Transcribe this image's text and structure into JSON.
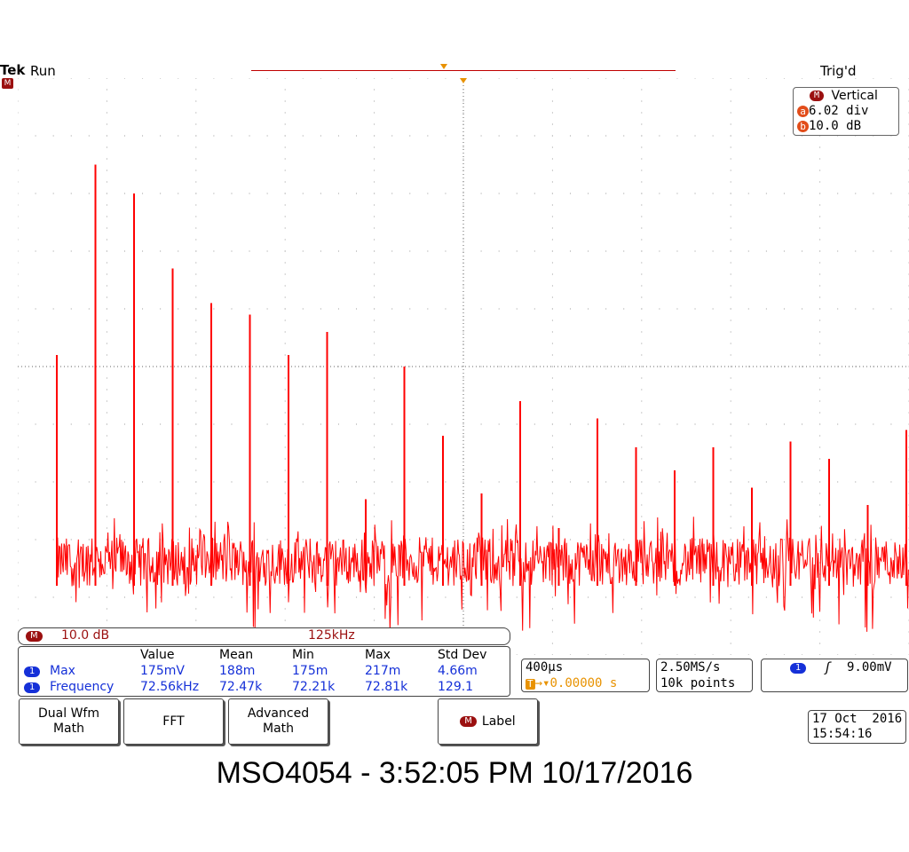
{
  "header": {
    "brand": "Tek",
    "state": "Run",
    "trigger_status": "Trig'd"
  },
  "channel_marker": {
    "label": "M"
  },
  "vertical_readout": {
    "title": "Vertical",
    "a_label": "a",
    "a_value": "6.02 div",
    "b_label": "b",
    "b_value": "10.0 dB"
  },
  "math_status": {
    "badge": "M",
    "scale": "10.0 dB",
    "span": "125kHz"
  },
  "measurements": {
    "headers": [
      "Value",
      "Mean",
      "Min",
      "Max",
      "Std Dev"
    ],
    "rows": [
      {
        "badge": "1",
        "name": "Max",
        "values": [
          "175mV",
          "188m",
          "175m",
          "217m",
          "4.66m"
        ]
      },
      {
        "badge": "1",
        "name": "Frequency",
        "values": [
          "72.56kHz",
          "72.47k",
          "72.21k",
          "72.81k",
          "129.1"
        ]
      }
    ]
  },
  "timebase": {
    "scale": "400µs",
    "delay_icon": "T",
    "delay": "0.00000 s"
  },
  "acquisition": {
    "rate": "2.50MS/s",
    "record": "10k points"
  },
  "trigger": {
    "badge": "1",
    "slope_icon": "rising-edge-icon",
    "level": "9.00mV"
  },
  "menu": {
    "dual_wfm_math": "Dual Wfm\nMath",
    "fft": "FFT",
    "advanced_math": "Advanced\nMath",
    "label_badge": "M",
    "label": "Label"
  },
  "clock": {
    "date": "17 Oct  2016",
    "time": "15:54:16"
  },
  "caption": "MSO4054 - 3:52:05 PM   10/17/2016",
  "colors": {
    "trace": "#ff0000",
    "math_badge": "#9b1010",
    "channel1_badge": "#1530d8",
    "measurement_text": "#1530d8",
    "delay_text": "#e89200",
    "vertical_badge": "#e24d1a"
  },
  "chart_data": {
    "type": "line",
    "title": "",
    "xlabel": "",
    "ylabel": "",
    "x_divisions": 10,
    "y_divisions": 10,
    "grid": true,
    "noise_floor_div": [
      1.2,
      2.4
    ],
    "series": [
      {
        "values_div": [
          5.2,
          8.5,
          8.0,
          6.7,
          6.1,
          5.9,
          5.2,
          5.6,
          2.7,
          5.0,
          3.8,
          2.8,
          4.4,
          2.2,
          4.1,
          3.6,
          3.2,
          3.6,
          2.9,
          3.7,
          3.4,
          2.6,
          3.9
        ]
      }
    ]
  }
}
